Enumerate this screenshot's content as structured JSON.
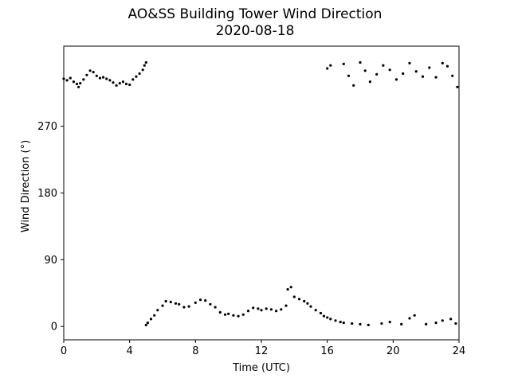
{
  "chart_data": {
    "type": "scatter",
    "title": "AO&SS Building Tower Wind Direction",
    "subtitle": "2020-08-18",
    "xlabel": "Time (UTC)",
    "ylabel": "Wind Direction (°)",
    "xlim": [
      0,
      24
    ],
    "ylim": [
      -18,
      378
    ],
    "xticks": [
      0,
      4,
      8,
      12,
      16,
      20,
      24
    ],
    "yticks": [
      0,
      90,
      180,
      270
    ],
    "grid": false,
    "marker_color": "#000000",
    "series": [
      {
        "points": [
          [
            0.0,
            334
          ],
          [
            0.2,
            332
          ],
          [
            0.4,
            335
          ],
          [
            0.6,
            330
          ],
          [
            0.8,
            327
          ],
          [
            0.9,
            323
          ],
          [
            1.0,
            328
          ],
          [
            1.2,
            333
          ],
          [
            1.4,
            339
          ],
          [
            1.6,
            345
          ],
          [
            1.8,
            343
          ],
          [
            2.0,
            338
          ],
          [
            2.2,
            335
          ],
          [
            2.4,
            336
          ],
          [
            2.6,
            334
          ],
          [
            2.8,
            332
          ],
          [
            3.0,
            329
          ],
          [
            3.2,
            325
          ],
          [
            3.4,
            328
          ],
          [
            3.6,
            330
          ],
          [
            3.8,
            327
          ],
          [
            4.0,
            326
          ],
          [
            4.2,
            333
          ],
          [
            4.4,
            337
          ],
          [
            4.6,
            341
          ],
          [
            4.8,
            346
          ],
          [
            4.9,
            352
          ],
          [
            5.0,
            356
          ],
          [
            5.0,
            2
          ],
          [
            5.1,
            5
          ],
          [
            5.3,
            10
          ],
          [
            5.5,
            15
          ],
          [
            5.7,
            22
          ],
          [
            6.0,
            28
          ],
          [
            6.2,
            34
          ],
          [
            6.5,
            33
          ],
          [
            6.8,
            31
          ],
          [
            7.0,
            30
          ],
          [
            7.3,
            26
          ],
          [
            7.6,
            27
          ],
          [
            8.0,
            32
          ],
          [
            8.3,
            36
          ],
          [
            8.6,
            35
          ],
          [
            8.9,
            30
          ],
          [
            9.2,
            26
          ],
          [
            9.5,
            19
          ],
          [
            9.8,
            16
          ],
          [
            10.0,
            17
          ],
          [
            10.3,
            15
          ],
          [
            10.6,
            14
          ],
          [
            10.9,
            16
          ],
          [
            11.2,
            21
          ],
          [
            11.5,
            25
          ],
          [
            11.8,
            24
          ],
          [
            12.0,
            22
          ],
          [
            12.3,
            24
          ],
          [
            12.6,
            23
          ],
          [
            12.9,
            21
          ],
          [
            13.2,
            23
          ],
          [
            13.5,
            28
          ],
          [
            13.6,
            50
          ],
          [
            13.8,
            53
          ],
          [
            14.0,
            40
          ],
          [
            14.3,
            37
          ],
          [
            14.6,
            34
          ],
          [
            14.8,
            31
          ],
          [
            15.0,
            27
          ],
          [
            15.3,
            22
          ],
          [
            15.6,
            18
          ],
          [
            15.8,
            14
          ],
          [
            16.0,
            12
          ],
          [
            16.2,
            10
          ],
          [
            16.5,
            8
          ],
          [
            16.8,
            6
          ],
          [
            17.0,
            5
          ],
          [
            17.5,
            4
          ],
          [
            18.0,
            3
          ],
          [
            18.5,
            2
          ],
          [
            19.3,
            4
          ],
          [
            19.8,
            6
          ],
          [
            20.5,
            3
          ],
          [
            21.0,
            11
          ],
          [
            21.3,
            15
          ],
          [
            22.0,
            3
          ],
          [
            22.6,
            5
          ],
          [
            23.0,
            8
          ],
          [
            23.5,
            10
          ],
          [
            23.8,
            4
          ],
          [
            16.0,
            348
          ],
          [
            16.2,
            352
          ],
          [
            17.0,
            354
          ],
          [
            17.3,
            338
          ],
          [
            17.6,
            325
          ],
          [
            18.0,
            356
          ],
          [
            18.3,
            345
          ],
          [
            18.6,
            330
          ],
          [
            19.0,
            340
          ],
          [
            19.4,
            352
          ],
          [
            19.8,
            346
          ],
          [
            20.2,
            333
          ],
          [
            20.6,
            341
          ],
          [
            21.0,
            355
          ],
          [
            21.4,
            344
          ],
          [
            21.8,
            337
          ],
          [
            22.2,
            349
          ],
          [
            22.6,
            336
          ],
          [
            23.0,
            355
          ],
          [
            23.3,
            351
          ],
          [
            23.6,
            338
          ],
          [
            23.9,
            323
          ]
        ]
      }
    ]
  }
}
